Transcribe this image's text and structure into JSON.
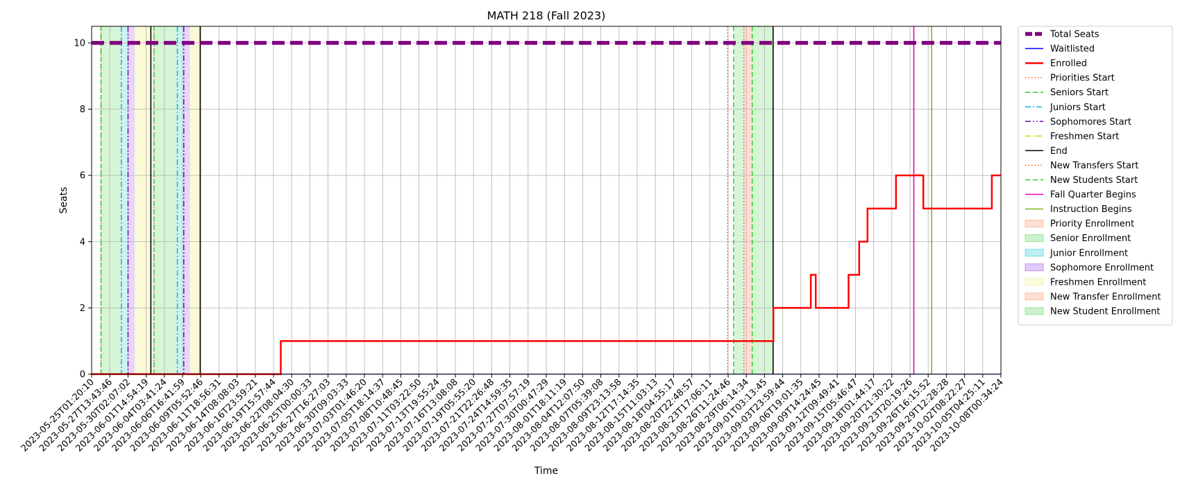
{
  "chart_data": {
    "type": "line",
    "title": "MATH 218 (Fall 2023)",
    "xlabel": "Time",
    "ylabel": "Seats",
    "ylim": [
      0,
      10.5
    ],
    "yticks": [
      0,
      2,
      4,
      6,
      8,
      10
    ],
    "xlim": [
      "2023-05-25T01:20:10",
      "2023-10-08T00:34:24"
    ],
    "grid": true,
    "legend_position": "outside-right",
    "x_tick_labels": [
      "2023-05-25T01:20:10",
      "2023-05-27T13:43:46",
      "2023-05-30T02:07:02",
      "2023-06-01T14:54:19",
      "2023-06-04T03:41:24",
      "2023-06-06T16:41:59",
      "2023-06-09T05:52:46",
      "2023-06-11T18:56:31",
      "2023-06-14T08:08:03",
      "2023-06-16T23:59:21",
      "2023-06-19T15:57:44",
      "2023-06-22T08:04:30",
      "2023-06-25T00:00:33",
      "2023-06-27T16:27:03",
      "2023-06-30T09:03:33",
      "2023-07-03T01:46:20",
      "2023-07-05T18:14:37",
      "2023-07-08T10:48:45",
      "2023-07-11T03:22:50",
      "2023-07-13T19:55:24",
      "2023-07-16T13:08:08",
      "2023-07-19T05:55:20",
      "2023-07-21T22:26:48",
      "2023-07-24T14:59:35",
      "2023-07-27T07:57:19",
      "2023-07-30T00:47:29",
      "2023-08-01T18:11:19",
      "2023-08-04T12:07:50",
      "2023-08-07T05:39:08",
      "2023-08-09T23:13:58",
      "2023-08-12T17:14:35",
      "2023-08-15T11:03:13",
      "2023-08-18T04:55:17",
      "2023-08-20T22:48:57",
      "2023-08-23T17:06:11",
      "2023-08-26T11:24:46",
      "2023-08-29T06:14:34",
      "2023-09-01T03:13:45",
      "2023-09-03T23:59:44",
      "2023-09-06T19:01:35",
      "2023-09-09T14:24:45",
      "2023-09-12T09:49:41",
      "2023-09-15T05:46:47",
      "2023-09-18T01:44:17",
      "2023-09-20T21:30:22",
      "2023-09-23T20:19:26",
      "2023-09-26T16:15:52",
      "2023-09-29T12:28:28",
      "2023-10-02T08:22:27",
      "2023-10-05T04:25:11",
      "2023-10-08T00:34:24"
    ],
    "series": [
      {
        "name": "Total Seats",
        "color": "#800080",
        "style": "dashed-thick",
        "points": [
          [
            "2023-05-25T01:20:10",
            10
          ],
          [
            "2023-10-08T00:34:24",
            10
          ]
        ]
      },
      {
        "name": "Waitlisted",
        "color": "#0000ff",
        "style": "solid",
        "points": [
          [
            "2023-05-25T01:20:10",
            0
          ],
          [
            "2023-10-08T00:34:24",
            0
          ]
        ]
      },
      {
        "name": "Enrolled",
        "color": "#ff0000",
        "style": "step-thick",
        "points": [
          [
            "2023-05-25T01:20:10",
            0
          ],
          [
            "2023-06-22T08:04:30",
            1
          ],
          [
            "2023-09-03T23:59:44",
            2
          ],
          [
            "2023-09-09T14:24:45",
            3
          ],
          [
            "2023-09-10T08:00:00",
            2
          ],
          [
            "2023-09-15T05:46:47",
            3
          ],
          [
            "2023-09-16T20:00:00",
            4
          ],
          [
            "2023-09-18T01:44:17",
            5
          ],
          [
            "2023-09-22T08:00:00",
            6
          ],
          [
            "2023-09-26T10:00:00",
            5
          ],
          [
            "2023-10-06T16:00:00",
            6
          ],
          [
            "2023-10-08T00:34:24",
            6
          ]
        ]
      }
    ],
    "vertical_lines": [
      {
        "name": "Priorities Start",
        "color": "#ff4500",
        "style": "dotted",
        "x": "2023-05-26T11:00:00"
      },
      {
        "name": "Seniors Start",
        "color": "#32cd32",
        "style": "dashed",
        "x": "2023-05-26T11:00:00"
      },
      {
        "name": "Juniors Start",
        "color": "#00bcd4",
        "style": "dashdot",
        "x": "2023-05-29T12:00:00"
      },
      {
        "name": "Sophomores Start",
        "color": "#6a0dad",
        "style": "dashdotdot",
        "x": "2023-05-30T12:00:00"
      },
      {
        "name": "End",
        "color": "#000000",
        "style": "solid",
        "x": "2023-06-02T22:00:00"
      },
      {
        "name": "Priorities Start",
        "color": "#ff4500",
        "style": "dotted",
        "x": "2023-06-03T09:00:00"
      },
      {
        "name": "Seniors Start",
        "color": "#32cd32",
        "style": "dashed",
        "x": "2023-06-03T09:00:00"
      },
      {
        "name": "Juniors Start",
        "color": "#00bcd4",
        "style": "dashdot",
        "x": "2023-06-06T21:00:00"
      },
      {
        "name": "Sophomores Start",
        "color": "#6a0dad",
        "style": "dashdotdot",
        "x": "2023-06-07T20:00:00"
      },
      {
        "name": "End",
        "color": "#000000",
        "style": "solid",
        "x": "2023-06-10T07:00:00"
      },
      {
        "name": "New Transfers Start",
        "color": "#ff4500",
        "style": "dotted",
        "x": "2023-08-28T04:00:00"
      },
      {
        "name": "New Students Start",
        "color": "#32cd32",
        "style": "dashed",
        "x": "2023-08-29T01:00:00"
      },
      {
        "name": "New Transfers Start",
        "color": "#ff4500",
        "style": "dotted",
        "x": "2023-08-30T14:00:00"
      },
      {
        "name": "New Students Start",
        "color": "#32cd32",
        "style": "dashed",
        "x": "2023-08-31T20:00:00"
      },
      {
        "name": "End",
        "color": "#000000",
        "style": "solid",
        "x": "2023-09-03T23:00:00"
      },
      {
        "name": "Fall Quarter Begins",
        "color": "#e000c0",
        "style": "solid",
        "x": "2023-09-25T00:00:00"
      },
      {
        "name": "Instruction Begins",
        "color": "#7cb518",
        "style": "solid",
        "x": "2023-09-27T16:00:00"
      }
    ],
    "shaded_spans": [
      {
        "name": "Senior Enrollment",
        "color": "#32cd32",
        "opacity": 0.2,
        "from": "2023-05-26T11:00:00",
        "to": "2023-05-29T12:00:00"
      },
      {
        "name": "Junior Enrollment",
        "color": "#00bcd4",
        "opacity": 0.2,
        "from": "2023-05-29T12:00:00",
        "to": "2023-05-30T12:00:00"
      },
      {
        "name": "Sophomore Enrollment",
        "color": "#8a2be2",
        "opacity": 0.2,
        "from": "2023-05-30T12:00:00",
        "to": "2023-05-31T12:00:00"
      },
      {
        "name": "Freshmen Enrollment",
        "color": "#eeee77",
        "opacity": 0.3,
        "from": "2023-05-31T12:00:00",
        "to": "2023-06-02T22:00:00"
      },
      {
        "name": "Senior Enrollment",
        "color": "#32cd32",
        "opacity": 0.2,
        "from": "2023-06-03T09:00:00",
        "to": "2023-06-06T21:00:00"
      },
      {
        "name": "Junior Enrollment",
        "color": "#00bcd4",
        "opacity": 0.2,
        "from": "2023-06-06T21:00:00",
        "to": "2023-06-07T20:00:00"
      },
      {
        "name": "Sophomore Enrollment",
        "color": "#8a2be2",
        "opacity": 0.2,
        "from": "2023-06-07T20:00:00",
        "to": "2023-06-08T18:00:00"
      },
      {
        "name": "Freshmen Enrollment",
        "color": "#eeee77",
        "opacity": 0.3,
        "from": "2023-06-08T18:00:00",
        "to": "2023-06-10T07:00:00"
      },
      {
        "name": "New Student Enrollment",
        "color": "#32cd32",
        "opacity": 0.2,
        "from": "2023-08-29T01:00:00",
        "to": "2023-08-30T14:00:00"
      },
      {
        "name": "New Transfer Enrollment",
        "color": "#ff7f50",
        "opacity": 0.25,
        "from": "2023-08-30T14:00:00",
        "to": "2023-08-31T20:00:00"
      },
      {
        "name": "New Student Enrollment",
        "color": "#32cd32",
        "opacity": 0.2,
        "from": "2023-08-31T20:00:00",
        "to": "2023-09-03T23:00:00"
      }
    ],
    "legend": [
      {
        "label": "Total Seats",
        "kind": "line",
        "color": "#800080",
        "style": "dashed-thick"
      },
      {
        "label": "Waitlisted",
        "kind": "line",
        "color": "#0000ff",
        "style": "solid"
      },
      {
        "label": "Enrolled",
        "kind": "line",
        "color": "#ff0000",
        "style": "solid-thick"
      },
      {
        "label": "Priorities Start",
        "kind": "line",
        "color": "#ff4500",
        "style": "dotted"
      },
      {
        "label": "Seniors Start",
        "kind": "line",
        "color": "#32cd32",
        "style": "dashed"
      },
      {
        "label": "Juniors Start",
        "kind": "line",
        "color": "#00bcd4",
        "style": "dashdot"
      },
      {
        "label": "Sophomores Start",
        "kind": "line",
        "color": "#6a0dad",
        "style": "dashdotdot"
      },
      {
        "label": "Freshmen Start",
        "kind": "line",
        "color": "#d4d400",
        "style": "dashdot"
      },
      {
        "label": "End",
        "kind": "line",
        "color": "#000000",
        "style": "solid"
      },
      {
        "label": "New Transfers Start",
        "kind": "line",
        "color": "#ff4500",
        "style": "dotted"
      },
      {
        "label": "New Students Start",
        "kind": "line",
        "color": "#32cd32",
        "style": "dashed"
      },
      {
        "label": "Fall Quarter Begins",
        "kind": "line",
        "color": "#e000c0",
        "style": "solid"
      },
      {
        "label": "Instruction Begins",
        "kind": "line",
        "color": "#7cb518",
        "style": "solid"
      },
      {
        "label": "Priority Enrollment",
        "kind": "patch",
        "color": "#ff7f50"
      },
      {
        "label": "Senior Enrollment",
        "kind": "patch",
        "color": "#32cd32"
      },
      {
        "label": "Junior Enrollment",
        "kind": "patch",
        "color": "#00bcd4"
      },
      {
        "label": "Sophomore Enrollment",
        "kind": "patch",
        "color": "#8a2be2"
      },
      {
        "label": "Freshmen Enrollment",
        "kind": "patch",
        "color": "#eeee77"
      },
      {
        "label": "New Transfer Enrollment",
        "kind": "patch",
        "color": "#ff7f50"
      },
      {
        "label": "New Student Enrollment",
        "kind": "patch",
        "color": "#32cd32"
      }
    ]
  }
}
